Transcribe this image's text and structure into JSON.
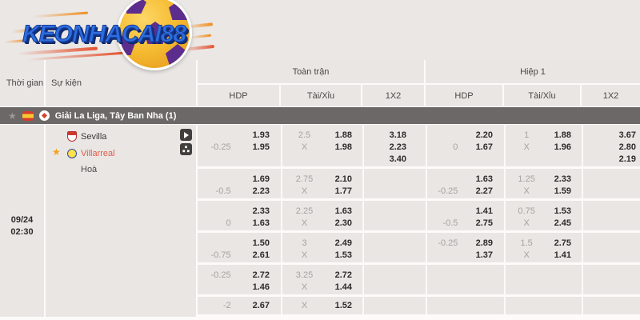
{
  "brand": {
    "logo_text": "KEONHACAI88"
  },
  "header": {
    "time_col": "Thời gian",
    "event_col": "Sự kiện",
    "full_match": "Toàn trận",
    "first_half": "Hiệp 1",
    "hdp": "HDP",
    "over_under": "Tài/Xỉu",
    "one_x_two": "1X2"
  },
  "league": {
    "title": "Giải La Liga, Tây Ban Nha (1)"
  },
  "match": {
    "date": "09/24",
    "time": "02:30",
    "home_team": "Sevilla",
    "away_team": "Villarreal",
    "draw_label": "Hoà"
  },
  "icons": {
    "favorite_star": "★",
    "play_button": "play-triangle",
    "lineup_button": "formation-squares"
  },
  "colors": {
    "accent_orange": "#f4a21c",
    "away_team_red": "#e25c48",
    "league_bar_gray": "#6b6867",
    "odds_text_dark": "#2e2c2b",
    "line_text_gray": "#a5a3a1",
    "logo_blue": "#2e6ede",
    "ball_yellow": "#f5bb31",
    "ball_purple": "#5d2d8e"
  },
  "odds_rows": [
    {
      "full_hdp": [
        [
          "",
          "1.93"
        ],
        [
          "-0.25",
          "1.95"
        ]
      ],
      "full_ou": [
        [
          "2.5",
          "1.88"
        ],
        [
          "X",
          "1.98"
        ]
      ],
      "full_1x2": [
        "3.18",
        "2.23",
        "3.40"
      ],
      "half_hdp": [
        [
          "",
          "2.20"
        ],
        [
          "0",
          "1.67"
        ]
      ],
      "half_ou": [
        [
          "1",
          "1.88"
        ],
        [
          "X",
          "1.96"
        ]
      ],
      "half_1x2": [
        "3.67",
        "2.80",
        "2.19"
      ]
    },
    {
      "full_hdp": [
        [
          "",
          "1.69"
        ],
        [
          "-0.5",
          "2.23"
        ]
      ],
      "full_ou": [
        [
          "2.75",
          "2.10"
        ],
        [
          "X",
          "1.77"
        ]
      ],
      "full_1x2": [],
      "half_hdp": [
        [
          "",
          "1.63"
        ],
        [
          "-0.25",
          "2.27"
        ]
      ],
      "half_ou": [
        [
          "1.25",
          "2.33"
        ],
        [
          "X",
          "1.59"
        ]
      ],
      "half_1x2": []
    },
    {
      "full_hdp": [
        [
          "",
          "2.33"
        ],
        [
          "0",
          "1.63"
        ]
      ],
      "full_ou": [
        [
          "2.25",
          "1.63"
        ],
        [
          "X",
          "2.30"
        ]
      ],
      "full_1x2": [],
      "half_hdp": [
        [
          "",
          "1.41"
        ],
        [
          "-0.5",
          "2.75"
        ]
      ],
      "half_ou": [
        [
          "0.75",
          "1.53"
        ],
        [
          "X",
          "2.45"
        ]
      ],
      "half_1x2": []
    },
    {
      "full_hdp": [
        [
          "",
          "1.50"
        ],
        [
          "-0.75",
          "2.61"
        ]
      ],
      "full_ou": [
        [
          "3",
          "2.49"
        ],
        [
          "X",
          "1.53"
        ]
      ],
      "full_1x2": [],
      "half_hdp": [
        [
          "-0.25",
          "2.89"
        ],
        [
          "",
          "1.37"
        ]
      ],
      "half_ou": [
        [
          "1.5",
          "2.75"
        ],
        [
          "X",
          "1.41"
        ]
      ],
      "half_1x2": []
    },
    {
      "full_hdp": [
        [
          "-0.25",
          "2.72"
        ],
        [
          "",
          "1.46"
        ]
      ],
      "full_ou": [
        [
          "3.25",
          "2.72"
        ],
        [
          "X",
          "1.44"
        ]
      ],
      "full_1x2": [],
      "half_hdp": [],
      "half_ou": [],
      "half_1x2": []
    },
    {
      "full_hdp": [
        [
          "-2",
          "2.67"
        ]
      ],
      "full_ou": [
        [
          "X",
          "1.52"
        ]
      ],
      "full_1x2": [],
      "half_hdp": [],
      "half_ou": [],
      "half_1x2": []
    }
  ]
}
